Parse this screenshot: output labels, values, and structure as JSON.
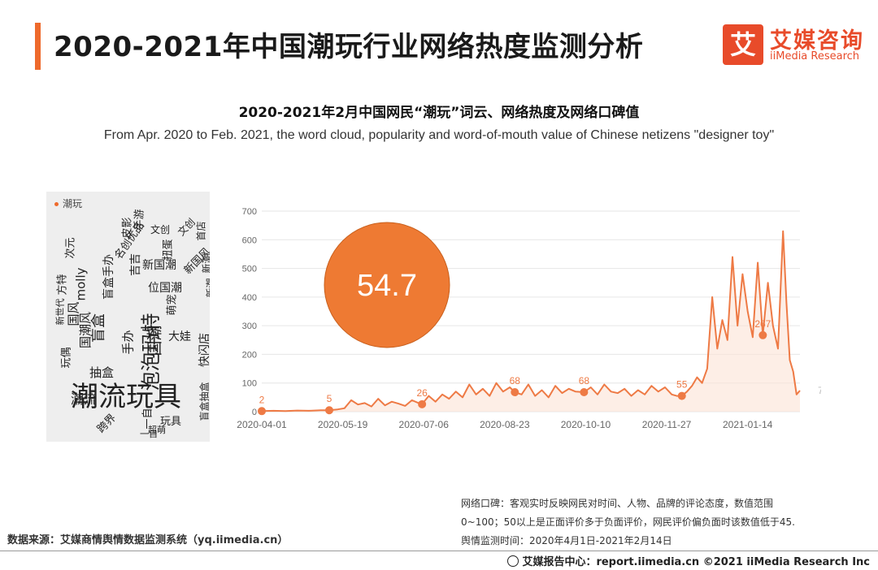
{
  "header": {
    "title": "2020-2021年中国潮玩行业网络热度监测分析",
    "logo_mark": "艾",
    "logo_cn": "艾媒咨询",
    "logo_en": "iiMedia Research"
  },
  "subtitle": {
    "cn": "2020-2021年2月中国网民“潮玩”词云、网络热度及网络口碑值",
    "en": "From Apr. 2020 to Feb. 2021, the word cloud, popularity and word-of-mouth value of Chinese netizens \"designer toy\""
  },
  "word_cloud": {
    "legend": "潮玩",
    "words": [
      "潮流玩具",
      "泡泡玛特",
      "盲盒",
      "潮流",
      "国潮",
      "手办",
      "抽盒",
      "molly",
      "名创优品",
      "次元",
      "盲盒手办",
      "国风",
      "新国潮",
      "文创",
      "玩偶",
      "大娃",
      "快闪店",
      "方特",
      "玩具",
      "手游",
      "新国风",
      "萌宠",
      "盲盒抽盒",
      "新潮",
      "扭蛋",
      "一自",
      "位国潮",
      "皮影",
      "文创",
      "首店",
      "新潮",
      "一自",
      "超萌",
      "跨界",
      "新世代",
      "国潮风",
      "吉吉"
    ]
  },
  "chart_data": {
    "type": "line",
    "x_tick_labels": [
      "2020-04-01",
      "2020-05-19",
      "2020-07-06",
      "2020-08-23",
      "2020-10-10",
      "2020-11-27",
      "2021-01-14"
    ],
    "ylim": [
      0,
      700
    ],
    "y_ticks": [
      0,
      100,
      200,
      300,
      400,
      500,
      600,
      700
    ],
    "grid": true,
    "word_of_mouth_value": "54.7",
    "end_label": "73.6",
    "point_labels": [
      {
        "date": "2020-04-01",
        "value": 2,
        "label": "2"
      },
      {
        "date": "2020-05-11",
        "value": 5,
        "label": "5"
      },
      {
        "date": "2020-07-05",
        "value": 26,
        "label": "26"
      },
      {
        "date": "2020-08-29",
        "value": 68,
        "label": "68"
      },
      {
        "date": "2020-10-09",
        "value": 68,
        "label": "68"
      },
      {
        "date": "2020-12-06",
        "value": 55,
        "label": "55"
      },
      {
        "date": "2021-01-23",
        "value": 267,
        "label": "267"
      }
    ],
    "series": [
      {
        "x": [
          "2020-04-01",
          "2020-04-08",
          "2020-04-15",
          "2020-04-22",
          "2020-04-29",
          "2020-05-06",
          "2020-05-11",
          "2020-05-16",
          "2020-05-20",
          "2020-05-24",
          "2020-05-28",
          "2020-06-01",
          "2020-06-05",
          "2020-06-09",
          "2020-06-13",
          "2020-06-17",
          "2020-06-21",
          "2020-06-25",
          "2020-06-29",
          "2020-07-03",
          "2020-07-05",
          "2020-07-09",
          "2020-07-13",
          "2020-07-17",
          "2020-07-21",
          "2020-07-25",
          "2020-07-29",
          "2020-08-02",
          "2020-08-06",
          "2020-08-10",
          "2020-08-14",
          "2020-08-18",
          "2020-08-22",
          "2020-08-26",
          "2020-08-29",
          "2020-09-02",
          "2020-09-06",
          "2020-09-10",
          "2020-09-14",
          "2020-09-18",
          "2020-09-22",
          "2020-09-26",
          "2020-09-30",
          "2020-10-04",
          "2020-10-09",
          "2020-10-13",
          "2020-10-17",
          "2020-10-21",
          "2020-10-25",
          "2020-10-29",
          "2020-11-02",
          "2020-11-06",
          "2020-11-10",
          "2020-11-14",
          "2020-11-18",
          "2020-11-22",
          "2020-11-26",
          "2020-11-30",
          "2020-12-03",
          "2020-12-06",
          "2020-12-09",
          "2020-12-12",
          "2020-12-15",
          "2020-12-18",
          "2020-12-21",
          "2020-12-24",
          "2020-12-27",
          "2020-12-30",
          "2021-01-02",
          "2021-01-05",
          "2021-01-08",
          "2021-01-11",
          "2021-01-14",
          "2021-01-17",
          "2021-01-20",
          "2021-01-23",
          "2021-01-26",
          "2021-01-29",
          "2021-02-01",
          "2021-02-04",
          "2021-02-06",
          "2021-02-08",
          "2021-02-10",
          "2021-02-12",
          "2021-02-14"
        ],
        "values": [
          2,
          3,
          2,
          4,
          3,
          5,
          5,
          8,
          12,
          40,
          25,
          30,
          18,
          45,
          22,
          35,
          28,
          20,
          40,
          30,
          26,
          55,
          35,
          60,
          45,
          70,
          50,
          95,
          60,
          80,
          55,
          100,
          70,
          85,
          68,
          60,
          95,
          55,
          75,
          50,
          90,
          65,
          80,
          70,
          68,
          85,
          60,
          95,
          70,
          65,
          80,
          55,
          75,
          60,
          90,
          70,
          85,
          60,
          55,
          55,
          70,
          90,
          120,
          100,
          150,
          400,
          220,
          320,
          250,
          540,
          300,
          480,
          350,
          260,
          520,
          267,
          450,
          300,
          220,
          630,
          380,
          180,
          140,
          60,
          73.6
        ]
      }
    ]
  },
  "notes": {
    "line1": "网络口碑：客观实时反映网民对时间、人物、品牌的评论态度，数值范围",
    "line2": "0~100；50以上是正面评价多于负面评价，网民评价偏负面时该数值低于45.",
    "line3": "舆情监测时间：2020年4月1日-2021年2月14日"
  },
  "source": "数据来源：艾媒商情舆情数据监测系统（yq.iimedia.cn）",
  "footer": "艾媒报告中心：report.iimedia.cn   ©2021  iiMedia Research  Inc"
}
